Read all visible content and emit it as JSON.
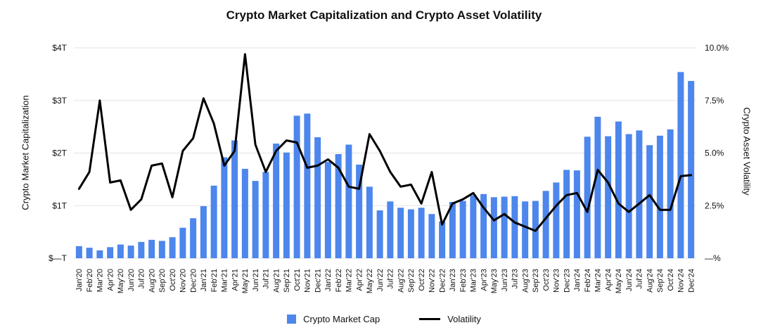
{
  "title": "Crypto Market Capitalization and Crypto Asset Volatility",
  "left_axis": {
    "title": "Crypto Market Capitalization",
    "tick_labels": [
      "$4T",
      "$3T",
      "$2T",
      "$1T",
      "$—T"
    ],
    "tick_values": [
      4,
      3,
      2,
      1,
      0
    ]
  },
  "right_axis": {
    "title": "Crypto Asset Volatility",
    "tick_labels": [
      "10.0%",
      "7.5%",
      "5.0%",
      "2.5%",
      "—%"
    ],
    "tick_values": [
      10,
      7.5,
      5,
      2.5,
      0
    ]
  },
  "legend": {
    "items": [
      {
        "label": "Crypto Market Cap",
        "type": "bar"
      },
      {
        "label": "Volatility",
        "type": "line"
      }
    ]
  },
  "colors": {
    "bar": "#4d86ec",
    "line": "#000000",
    "grid": "#e3e3e3",
    "text": "#111111"
  },
  "chart_data": {
    "type": "bar",
    "subtype": "bar+line dual axis",
    "title": "Crypto Market Capitalization and Crypto Asset Volatility",
    "left_ylabel": "Crypto Market Capitalization",
    "right_ylabel": "Crypto Asset Volatility",
    "left_ylim": [
      0,
      4
    ],
    "right_ylim": [
      0,
      10
    ],
    "grid": true,
    "legend_position": "bottom",
    "categories": [
      "Jan'20",
      "Feb'20",
      "Mar'20",
      "Apr'20",
      "May'20",
      "Jun'20",
      "Jul'20",
      "Aug'20",
      "Sep'20",
      "Oct'20",
      "Nov'20",
      "Dec'20",
      "Jan'21",
      "Feb'21",
      "Mar'21",
      "Apr'21",
      "May'21",
      "Jun'21",
      "Jul'21",
      "Aug'21",
      "Sep'21",
      "Oct'21",
      "Nov'21",
      "Dec'21",
      "Jan'22",
      "Feb'22",
      "Mar'22",
      "Apr'22",
      "May'22",
      "Jun'22",
      "Jul'22",
      "Aug'22",
      "Sep'22",
      "Oct'22",
      "Nov'22",
      "Dec'22",
      "Jan'23",
      "Feb'23",
      "Mar'23",
      "Apr'23",
      "May'23",
      "Jun'23",
      "Jul'23",
      "Aug'23",
      "Sep'23",
      "Oct'23",
      "Nov'23",
      "Dec'23",
      "Jan'24",
      "Feb'24",
      "Mar'24",
      "Apr'24",
      "May'24",
      "Jun'24",
      "Jul'24",
      "Aug'24",
      "Sep'24",
      "Oct'24",
      "Nov'24",
      "Dec'24"
    ],
    "series": [
      {
        "name": "Crypto Market Cap",
        "type": "bar",
        "axis": "left",
        "unit": "$T",
        "values": [
          0.23,
          0.2,
          0.15,
          0.21,
          0.26,
          0.24,
          0.31,
          0.35,
          0.33,
          0.4,
          0.58,
          0.76,
          0.99,
          1.38,
          1.92,
          2.24,
          1.7,
          1.47,
          1.64,
          2.18,
          2.01,
          2.71,
          2.75,
          2.3,
          1.83,
          1.98,
          2.16,
          1.78,
          1.36,
          0.91,
          1.08,
          0.96,
          0.93,
          0.96,
          0.84,
          0.7,
          1.07,
          1.09,
          1.2,
          1.22,
          1.16,
          1.17,
          1.18,
          1.08,
          1.09,
          1.28,
          1.44,
          1.68,
          1.67,
          2.31,
          2.69,
          2.32,
          2.6,
          2.36,
          2.43,
          2.15,
          2.33,
          2.45,
          3.54,
          3.37
        ]
      },
      {
        "name": "Volatility",
        "type": "line",
        "axis": "right",
        "unit": "%",
        "values": [
          3.3,
          4.1,
          7.5,
          3.6,
          3.7,
          2.3,
          2.8,
          4.4,
          4.5,
          2.9,
          5.1,
          5.7,
          7.6,
          6.4,
          4.4,
          5.1,
          9.7,
          5.4,
          4.1,
          5.1,
          5.6,
          5.5,
          4.3,
          4.4,
          4.7,
          4.3,
          3.4,
          3.3,
          5.9,
          5.1,
          4.1,
          3.4,
          3.5,
          2.6,
          4.1,
          1.6,
          2.6,
          2.8,
          3.1,
          2.4,
          1.8,
          2.1,
          1.7,
          1.5,
          1.3,
          1.9,
          2.5,
          3.0,
          3.1,
          2.2,
          4.2,
          3.6,
          2.6,
          2.2,
          2.6,
          3.0,
          2.3,
          2.3,
          3.9,
          3.95
        ]
      }
    ]
  }
}
